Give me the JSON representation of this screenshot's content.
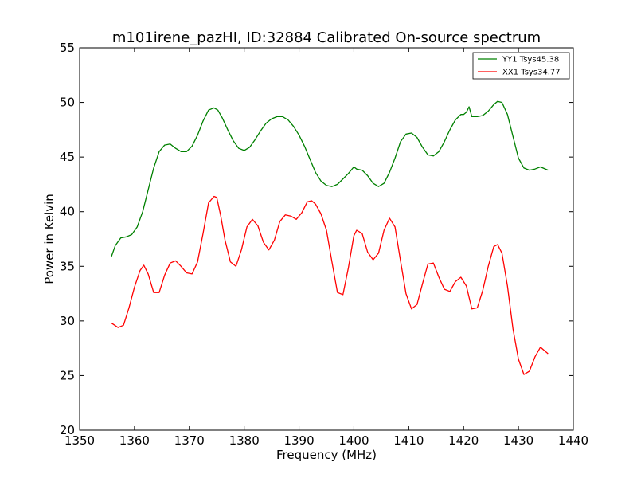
{
  "chart_data": {
    "type": "line",
    "title": "m101irene_pazHI, ID:32884 Calibrated On-source spectrum",
    "xlabel": "Frequency (MHz)",
    "ylabel": "Power in Kelvin",
    "xlim": [
      1350,
      1440
    ],
    "ylim": [
      20,
      55
    ],
    "xticks": [
      1350,
      1360,
      1370,
      1380,
      1390,
      1400,
      1410,
      1420,
      1430,
      1440
    ],
    "yticks": [
      20,
      25,
      30,
      35,
      40,
      45,
      50,
      55
    ],
    "grid": false,
    "legend_position": "top-right",
    "series": [
      {
        "name": "YY1 Tsys45.38",
        "color": "#008000",
        "x": [
          1355.8,
          1356.5,
          1357.5,
          1358.5,
          1359.5,
          1360.5,
          1361.5,
          1362.5,
          1363.5,
          1364.5,
          1365.5,
          1366.5,
          1367.5,
          1368.5,
          1369.5,
          1370.5,
          1371.5,
          1372.5,
          1373.5,
          1374.5,
          1375.2,
          1376,
          1377,
          1378,
          1379,
          1380,
          1381,
          1382,
          1383,
          1384,
          1385,
          1386,
          1387,
          1388,
          1389,
          1390,
          1391,
          1392,
          1393,
          1394,
          1395,
          1396,
          1397,
          1398,
          1399,
          1400,
          1400.5,
          1401.5,
          1402.5,
          1403.5,
          1404.5,
          1405.5,
          1406.5,
          1407.5,
          1408.5,
          1409.5,
          1410.5,
          1411.5,
          1412.5,
          1413.5,
          1414.5,
          1415.5,
          1416.5,
          1417.5,
          1418.5,
          1419.5,
          1420,
          1420.5,
          1421,
          1421.5,
          1422.5,
          1423.5,
          1424.5,
          1425.5,
          1426.2,
          1427,
          1428,
          1429,
          1430,
          1431,
          1432,
          1433,
          1434,
          1435.4
        ],
        "values": [
          35.9,
          36.9,
          37.6,
          37.7,
          37.9,
          38.6,
          40.0,
          42.0,
          44.0,
          45.5,
          46.1,
          46.2,
          45.8,
          45.5,
          45.5,
          46.0,
          47.0,
          48.3,
          49.3,
          49.5,
          49.3,
          48.6,
          47.5,
          46.5,
          45.8,
          45.6,
          45.9,
          46.6,
          47.4,
          48.1,
          48.5,
          48.7,
          48.7,
          48.4,
          47.8,
          47.0,
          46.0,
          44.8,
          43.6,
          42.8,
          42.4,
          42.3,
          42.5,
          43.0,
          43.5,
          44.1,
          43.9,
          43.8,
          43.3,
          42.6,
          42.3,
          42.6,
          43.6,
          44.9,
          46.4,
          47.1,
          47.2,
          46.8,
          45.9,
          45.2,
          45.1,
          45.5,
          46.4,
          47.5,
          48.4,
          48.9,
          48.9,
          49.1,
          49.6,
          48.7,
          48.7,
          48.8,
          49.2,
          49.8,
          50.1,
          50.0,
          48.9,
          46.9,
          44.9,
          44.0,
          43.8,
          43.9,
          44.1,
          43.8
        ]
      },
      {
        "name": "XX1 Tsys34.77",
        "color": "#ff0000",
        "x": [
          1355.8,
          1357,
          1358,
          1359,
          1360,
          1361,
          1361.7,
          1362.5,
          1363.5,
          1364.5,
          1365.5,
          1366.5,
          1367.5,
          1368.5,
          1369.5,
          1370.5,
          1371.5,
          1372.5,
          1373.5,
          1374.5,
          1375,
          1375.7,
          1376.5,
          1377.5,
          1378.5,
          1379.5,
          1380.5,
          1381.5,
          1382.5,
          1383.5,
          1384.5,
          1385.5,
          1386.5,
          1387.5,
          1388.5,
          1389.5,
          1390.5,
          1391.5,
          1392.3,
          1393,
          1394,
          1395,
          1396,
          1397,
          1398,
          1399,
          1400,
          1400.5,
          1401.5,
          1402.5,
          1403.5,
          1404.5,
          1405.5,
          1406.5,
          1407.5,
          1408.5,
          1409.5,
          1410.5,
          1411.5,
          1412.5,
          1413.5,
          1414.5,
          1415.5,
          1416.5,
          1417.5,
          1418.5,
          1419.5,
          1420.5,
          1421.5,
          1422.5,
          1423.5,
          1424.5,
          1425.5,
          1426.2,
          1427,
          1428,
          1429,
          1430,
          1431,
          1432,
          1433,
          1434,
          1435.4
        ],
        "values": [
          29.8,
          29.4,
          29.6,
          31.2,
          33.1,
          34.6,
          35.1,
          34.3,
          32.6,
          32.6,
          34.2,
          35.3,
          35.5,
          35.0,
          34.4,
          34.3,
          35.4,
          38.0,
          40.8,
          41.4,
          41.3,
          39.7,
          37.4,
          35.4,
          35.0,
          36.5,
          38.6,
          39.3,
          38.7,
          37.2,
          36.5,
          37.4,
          39.1,
          39.7,
          39.6,
          39.3,
          39.9,
          40.9,
          41.0,
          40.7,
          39.8,
          38.3,
          35.4,
          32.6,
          32.4,
          34.9,
          37.8,
          38.3,
          38.0,
          36.3,
          35.6,
          36.2,
          38.3,
          39.4,
          38.6,
          35.5,
          32.5,
          31.1,
          31.5,
          33.4,
          35.2,
          35.3,
          34.0,
          32.9,
          32.7,
          33.6,
          34.0,
          33.2,
          31.1,
          31.2,
          32.8,
          35.0,
          36.8,
          37.0,
          36.2,
          33.2,
          29.3,
          26.5,
          25.1,
          25.4,
          26.7,
          27.6,
          27.0
        ]
      }
    ]
  }
}
